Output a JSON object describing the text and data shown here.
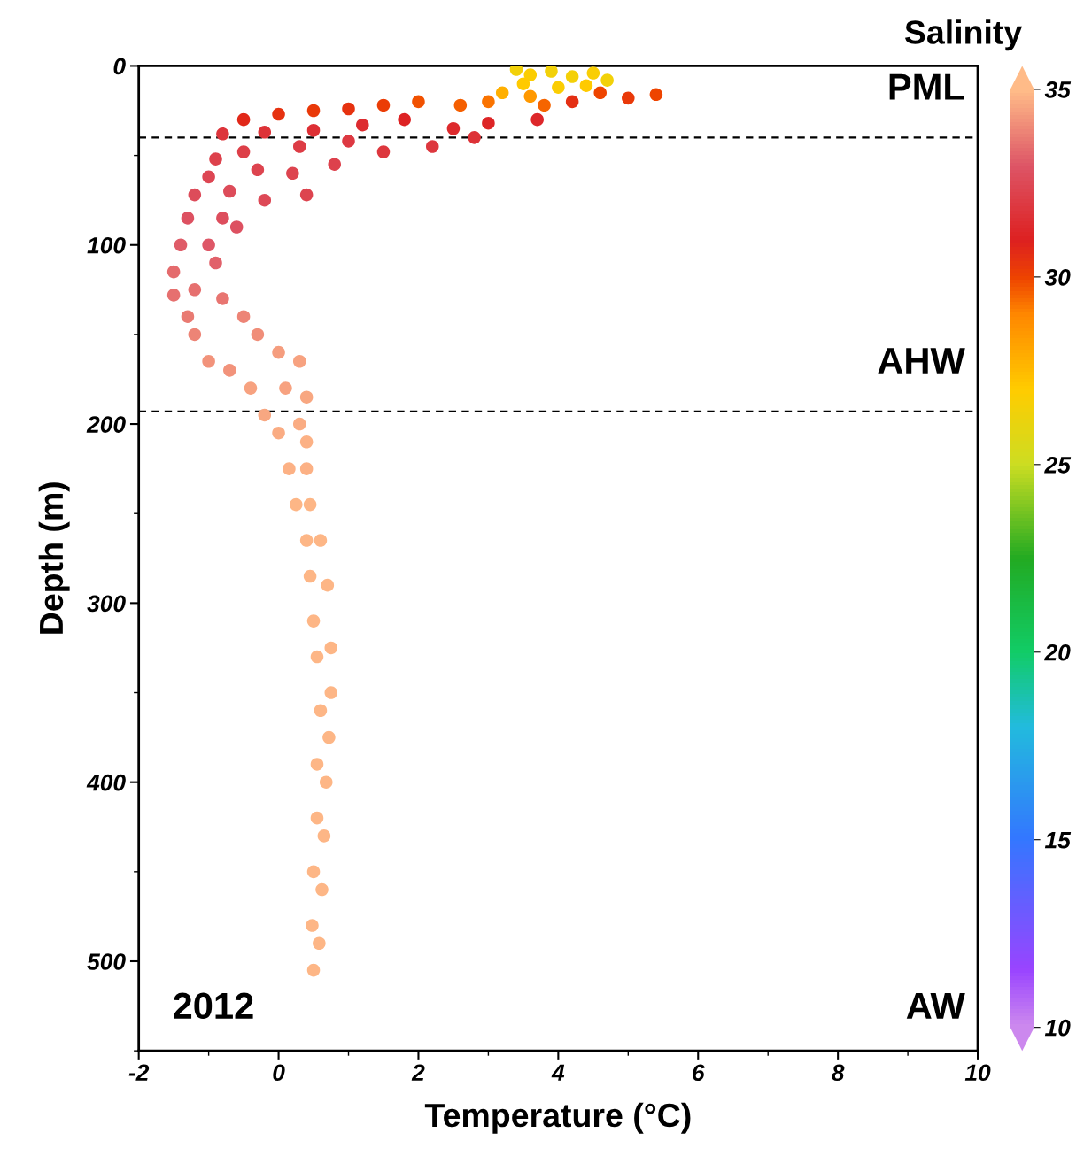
{
  "chart_data": {
    "type": "scatter",
    "xlabel": "Temperature (°C)",
    "ylabel": "Depth (m)",
    "clabel": "Salinity",
    "xlim": [
      -2,
      10
    ],
    "xticks": [
      -2,
      0,
      2,
      4,
      6,
      8,
      10
    ],
    "ylim": [
      550,
      0
    ],
    "yticks": [
      0,
      100,
      200,
      300,
      400,
      500
    ],
    "clim": [
      10,
      35
    ],
    "cticks": [
      10,
      15,
      20,
      25,
      30,
      35
    ],
    "marker": "circle",
    "grid": false,
    "ref_lines": [
      {
        "axis": "y",
        "value": 40,
        "color": "#000000",
        "line_style": "dashed"
      },
      {
        "axis": "y",
        "value": 193,
        "color": "#000000",
        "line_style": "dashed"
      }
    ],
    "annotations": [
      "PML",
      "AHW",
      "AW",
      "2012"
    ],
    "x": [
      3.4,
      3.6,
      3.9,
      4.2,
      4.5,
      4.7,
      3.5,
      4.0,
      4.4,
      3.2,
      3.6,
      4.6,
      5.0,
      5.4,
      4.2,
      3.8,
      3.0,
      2.6,
      2.0,
      1.5,
      1.0,
      0.5,
      0,
      -0.5,
      3.7,
      3.0,
      2.5,
      1.8,
      1.2,
      0.5,
      -0.2,
      -0.8,
      2.8,
      2.2,
      1.5,
      1.0,
      0.3,
      -0.5,
      -0.9,
      0.8,
      0.2,
      -0.3,
      -1.0,
      0.4,
      -0.2,
      -0.7,
      -1.2,
      -0.8,
      -1.3,
      -0.6,
      -1.0,
      -1.4,
      -0.9,
      -1.5,
      -1.2,
      -1.5,
      -0.8,
      -1.3,
      -0.5,
      -1.2,
      -0.3,
      -1.0,
      -0.7,
      0.0,
      0.3,
      -0.4,
      0.1,
      0.4,
      -0.2,
      0.3,
      0.0,
      0.4,
      0.15,
      0.4,
      0.25,
      0.45,
      0.4,
      0.6,
      0.45,
      0.7,
      0.5,
      0.75,
      0.55,
      0.75,
      0.6,
      0.72,
      0.55,
      0.68,
      0.55,
      0.65,
      0.5,
      0.62,
      0.48,
      0.58,
      0.5
    ],
    "values": [
      2,
      5,
      3,
      6,
      4,
      8,
      10,
      12,
      11,
      15,
      17,
      15,
      18,
      16,
      20,
      22,
      20,
      22,
      20,
      22,
      24,
      25,
      27,
      30,
      30,
      32,
      35,
      30,
      33,
      36,
      37,
      38,
      40,
      45,
      48,
      42,
      45,
      48,
      52,
      55,
      60,
      58,
      62,
      72,
      75,
      70,
      72,
      85,
      85,
      90,
      100,
      100,
      110,
      115,
      125,
      128,
      130,
      140,
      140,
      150,
      150,
      165,
      170,
      160,
      165,
      180,
      180,
      185,
      195,
      200,
      205,
      210,
      225,
      225,
      245,
      245,
      265,
      265,
      285,
      290,
      310,
      325,
      330,
      350,
      360,
      375,
      390,
      400,
      420,
      430,
      450,
      460,
      480,
      490,
      505
    ],
    "cvalues": [
      26.5,
      26.8,
      26.5,
      26.6,
      26.7,
      26.5,
      27,
      26.8,
      27,
      27.8,
      28.5,
      30,
      30.3,
      30,
      30.6,
      29.5,
      29.3,
      29.6,
      29.8,
      30.2,
      30.5,
      30.3,
      30.5,
      30.8,
      31.2,
      31.1,
      31.3,
      31,
      31.4,
      31.5,
      31.6,
      31.7,
      31.6,
      31.8,
      31.8,
      31.9,
      32,
      32.1,
      32.2,
      32.2,
      32.3,
      32.3,
      32.4,
      32.3,
      32.5,
      32.6,
      32.6,
      32.7,
      32.8,
      32.8,
      33.0,
      33.1,
      33.2,
      33.4,
      33.5,
      33.5,
      33.6,
      33.7,
      33.9,
      33.9,
      34.1,
      34.2,
      34.2,
      34.4,
      34.5,
      34.5,
      34.5,
      34.6,
      34.6,
      34.7,
      34.7,
      34.8,
      34.8,
      34.8,
      34.85,
      34.85,
      34.9,
      34.9,
      34.9,
      34.9,
      34.9,
      34.9,
      34.9,
      34.9,
      34.9,
      34.9,
      34.9,
      34.9,
      34.9,
      34.9,
      34.9,
      34.9,
      34.9,
      34.9,
      34.9
    ]
  }
}
